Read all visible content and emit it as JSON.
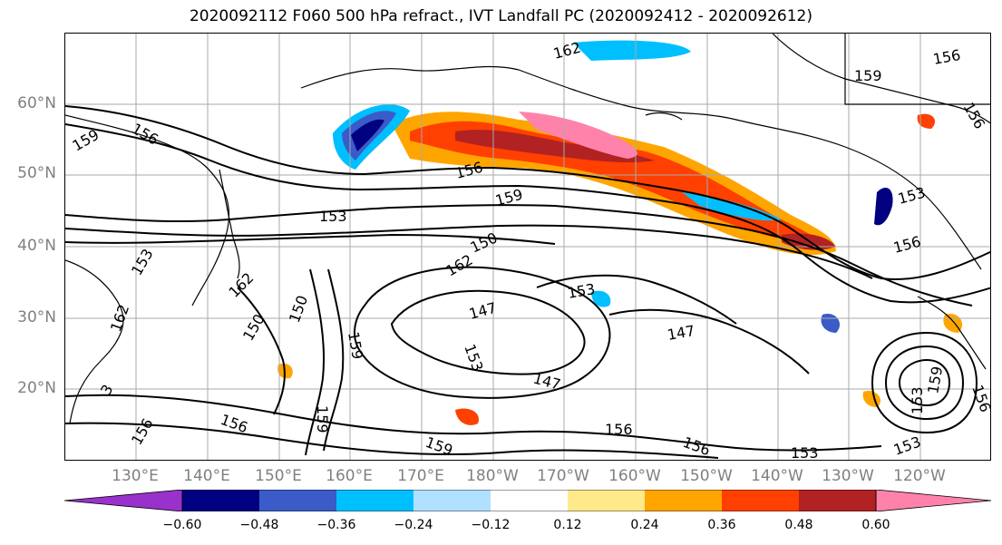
{
  "title": "2020092112 F060 500 hPa refract., IVT Landfall PC (2020092412 - 2020092612)",
  "lat_labels": [
    "60°N",
    "50°N",
    "40°N",
    "30°N",
    "20°N"
  ],
  "lon_labels": [
    "130°E",
    "140°E",
    "150°E",
    "160°E",
    "170°E",
    "180°W",
    "170°W",
    "160°W",
    "150°W",
    "140°W",
    "130°W",
    "120°W"
  ],
  "contour_labels": [
    "162",
    "159",
    "156",
    "156",
    "159",
    "156",
    "156",
    "153",
    "159",
    "153",
    "150",
    "162",
    "156",
    "153",
    "162",
    "150",
    "159",
    "162",
    "147",
    "153",
    "153",
    "147",
    "147",
    "156",
    "156",
    "159",
    "153",
    "153",
    "156",
    "159",
    "159",
    "153",
    "156",
    "3",
    "156",
    "150"
  ],
  "colorbar": {
    "colors": [
      "#9932cc",
      "#000080",
      "#3a5bc8",
      "#00bfff",
      "#b0e0ff",
      "#ffffff",
      "#ffe98a",
      "#ffa500",
      "#ff4000",
      "#b22222",
      "#ff82ab"
    ],
    "ticks": [
      "−0.60",
      "−0.48",
      "−0.36",
      "−0.24",
      "−0.12",
      "0.12",
      "0.24",
      "0.36",
      "0.48",
      "0.60"
    ]
  }
}
